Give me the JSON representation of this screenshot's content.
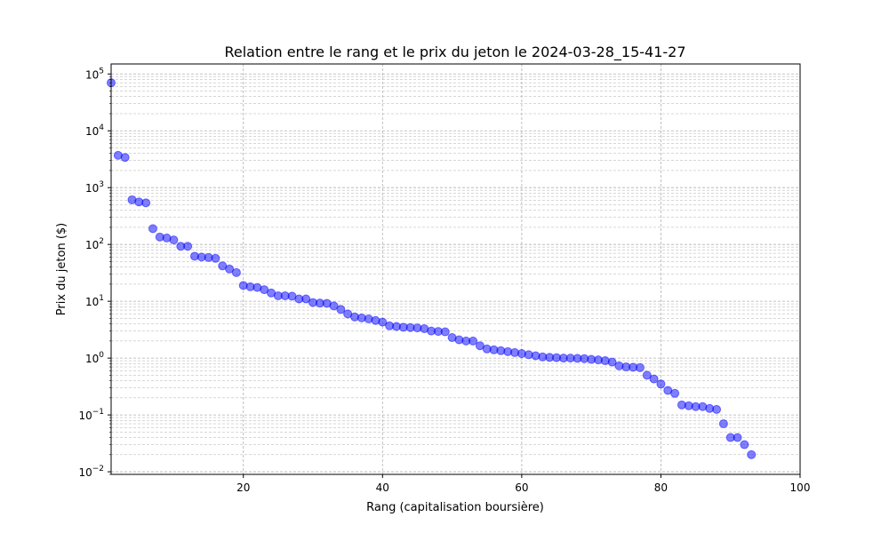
{
  "chart_data": {
    "type": "scatter",
    "title": "Relation entre le rang et le prix du jeton le 2024-03-28_15-41-27",
    "xlabel": "Rang (capitalisation boursière)",
    "ylabel": "Prix du jeton ($)",
    "xlim": [
      1,
      100
    ],
    "ylim": [
      0.009,
      150000
    ],
    "yscale": "log",
    "grid": true,
    "x_ticks": [
      20,
      40,
      60,
      80,
      100
    ],
    "x_tick_labels": [
      "20",
      "40",
      "60",
      "80",
      "100"
    ],
    "y_ticks": [
      0.01,
      0.1,
      1,
      10,
      100,
      1000,
      10000,
      100000
    ],
    "y_tick_labels": [
      {
        "base": "10",
        "exp": "−2"
      },
      {
        "base": "10",
        "exp": "−1"
      },
      {
        "base": "10",
        "exp": "0"
      },
      {
        "base": "10",
        "exp": "1"
      },
      {
        "base": "10",
        "exp": "2"
      },
      {
        "base": "10",
        "exp": "3"
      },
      {
        "base": "10",
        "exp": "4"
      },
      {
        "base": "10",
        "exp": "5"
      }
    ],
    "marker_color": "#0000ff",
    "marker_alpha": 0.5,
    "x": [
      1,
      2,
      3,
      4,
      5,
      6,
      7,
      8,
      9,
      10,
      11,
      12,
      13,
      14,
      15,
      16,
      17,
      18,
      19,
      20,
      21,
      22,
      23,
      24,
      25,
      26,
      27,
      28,
      29,
      30,
      31,
      32,
      33,
      34,
      35,
      36,
      37,
      38,
      39,
      40,
      41,
      42,
      43,
      44,
      45,
      46,
      47,
      48,
      49,
      50,
      51,
      52,
      53,
      54,
      55,
      56,
      57,
      58,
      59,
      60,
      61,
      62,
      63,
      64,
      65,
      66,
      67,
      68,
      69,
      70,
      71,
      72,
      73,
      74,
      75,
      76,
      77,
      78,
      79,
      80,
      81,
      82,
      83,
      84,
      85,
      86,
      87,
      88,
      89,
      90,
      91,
      92,
      93
    ],
    "y": [
      70000,
      3700,
      3400,
      610,
      560,
      540,
      190,
      135,
      130,
      120,
      93,
      93,
      62,
      60,
      59,
      57,
      42,
      37,
      32,
      19,
      18,
      17.5,
      16,
      14,
      12.5,
      12.5,
      12.3,
      11,
      11,
      9.5,
      9.3,
      9.2,
      8.3,
      7.2,
      6,
      5.3,
      5.1,
      4.9,
      4.6,
      4.3,
      3.7,
      3.6,
      3.5,
      3.45,
      3.4,
      3.3,
      3.0,
      2.95,
      2.9,
      2.3,
      2.1,
      2.0,
      2.0,
      1.65,
      1.45,
      1.4,
      1.35,
      1.3,
      1.25,
      1.2,
      1.15,
      1.1,
      1.05,
      1.03,
      1.02,
      1.0,
      1.0,
      0.99,
      0.98,
      0.95,
      0.93,
      0.9,
      0.85,
      0.73,
      0.7,
      0.69,
      0.68,
      0.5,
      0.43,
      0.35,
      0.27,
      0.24,
      0.15,
      0.145,
      0.14,
      0.14,
      0.13,
      0.125,
      0.07,
      0.04,
      0.04,
      0.03,
      0.02
    ]
  }
}
